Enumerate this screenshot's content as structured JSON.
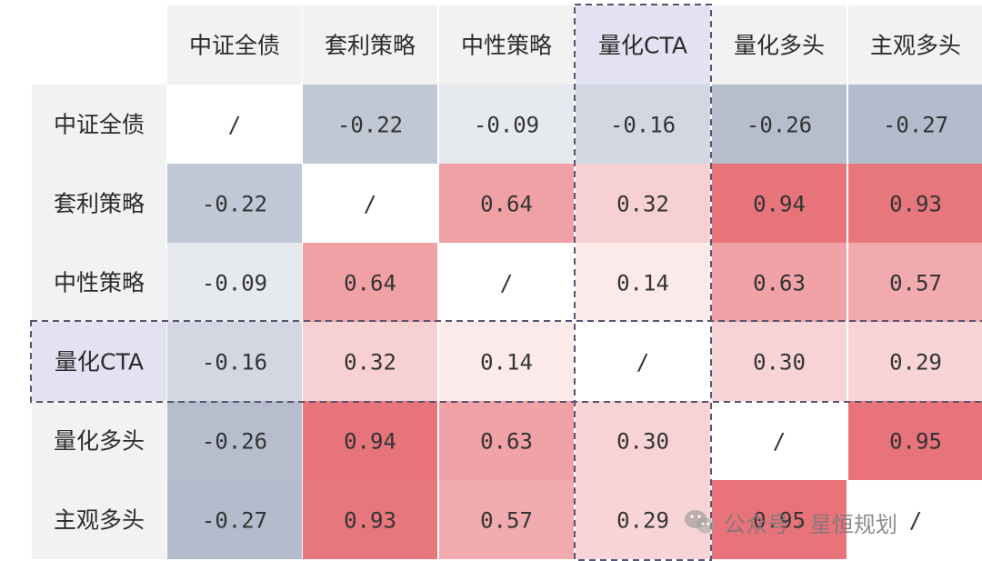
{
  "chart_data": {
    "type": "heatmap",
    "title": "",
    "columns": [
      "中证全债",
      "套利策略",
      "中性策略",
      "量化CTA",
      "量化多头",
      "主观多头"
    ],
    "rows": [
      "中证全债",
      "套利策略",
      "中性策略",
      "量化CTA",
      "量化多头",
      "主观多头"
    ],
    "values": [
      [
        null,
        -0.22,
        -0.09,
        -0.16,
        -0.26,
        -0.27
      ],
      [
        -0.22,
        null,
        0.64,
        0.32,
        0.94,
        0.93
      ],
      [
        -0.09,
        0.64,
        null,
        0.14,
        0.63,
        0.57
      ],
      [
        -0.16,
        0.32,
        0.14,
        null,
        0.3,
        0.29
      ],
      [
        -0.26,
        0.94,
        0.63,
        0.3,
        null,
        0.95
      ],
      [
        -0.27,
        0.93,
        0.57,
        0.29,
        0.95,
        null
      ]
    ],
    "cells": [
      [
        "/",
        "-0.22",
        "-0.09",
        "-0.16",
        "-0.26",
        "-0.27"
      ],
      [
        "-0.22",
        "/",
        "0.64",
        "0.32",
        "0.94",
        "0.93"
      ],
      [
        "-0.09",
        "0.64",
        "/",
        "0.14",
        "0.63",
        "0.57"
      ],
      [
        "-0.16",
        "0.32",
        "0.14",
        "/",
        "0.30",
        "0.29"
      ],
      [
        "-0.26",
        "0.94",
        "0.63",
        "0.30",
        "/",
        "0.95"
      ],
      [
        "-0.27",
        "0.93",
        "0.57",
        "0.29",
        "0.95",
        "/"
      ]
    ],
    "highlight": "量化CTA",
    "colors": {
      "positive": "#e8737a",
      "negative": "#b3bccc",
      "neutral": "#ffffff",
      "header_bg": "#f2f2f2",
      "highlight_bg": "#e4e1f2",
      "highlight_border": "#5a5470"
    }
  },
  "watermark": {
    "text": "公众号 · 星恒规划",
    "icon": "wechat-icon"
  }
}
